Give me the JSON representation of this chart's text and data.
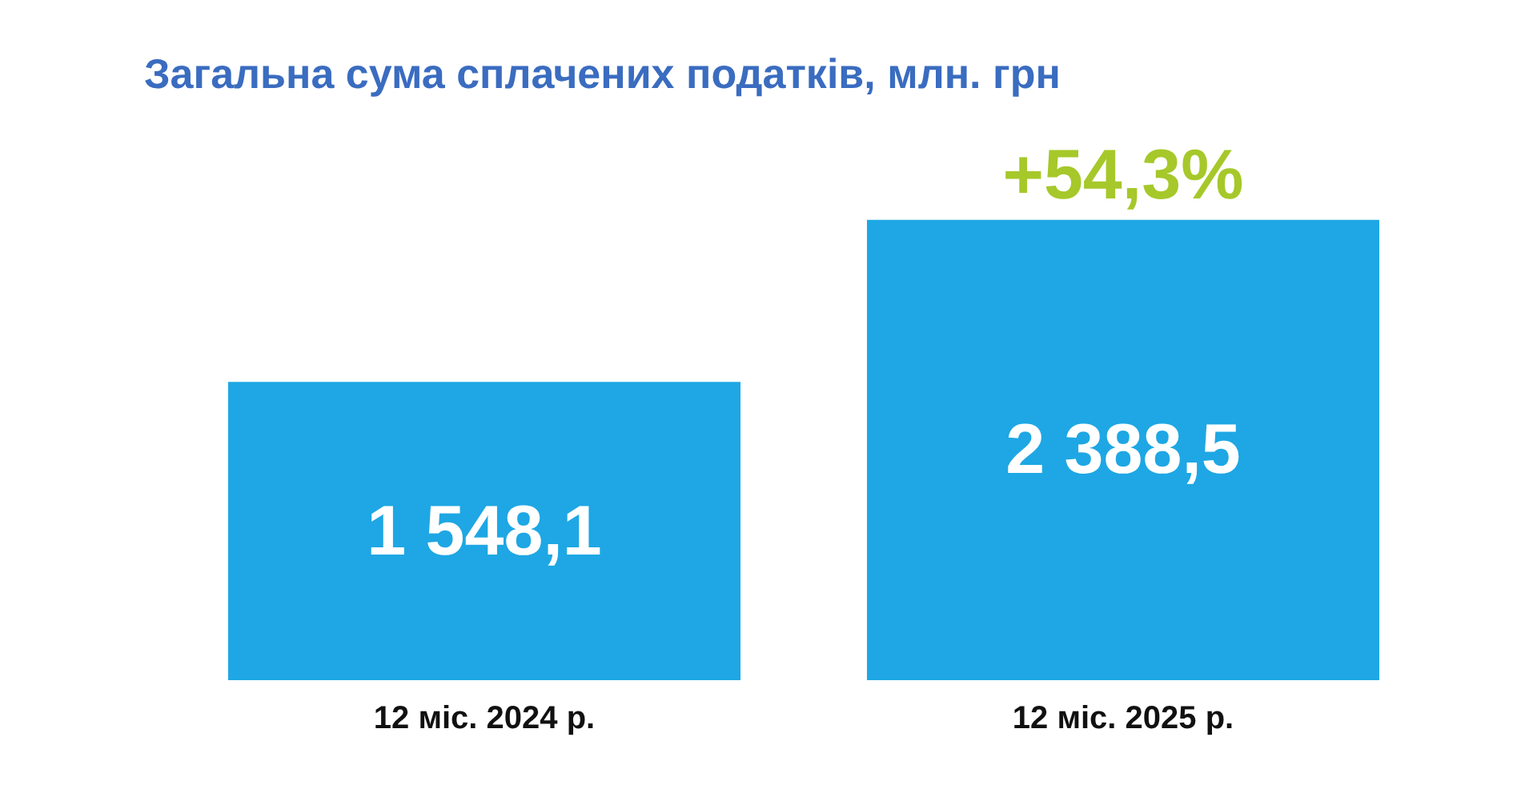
{
  "chart_data": {
    "type": "bar",
    "title": "Загальна сума сплачених податків, млн. грн",
    "categories": [
      "12 міс. 2024 р.",
      "12 міс. 2025 р."
    ],
    "values": [
      1548.1,
      2388.5
    ],
    "value_labels": [
      "1 548,1",
      "2 388,5"
    ],
    "color": "#1ea7e4",
    "annotations": [
      {
        "text": "+54,3%",
        "x": "12 міс. 2025 р.",
        "y": 2388.5
      }
    ]
  }
}
